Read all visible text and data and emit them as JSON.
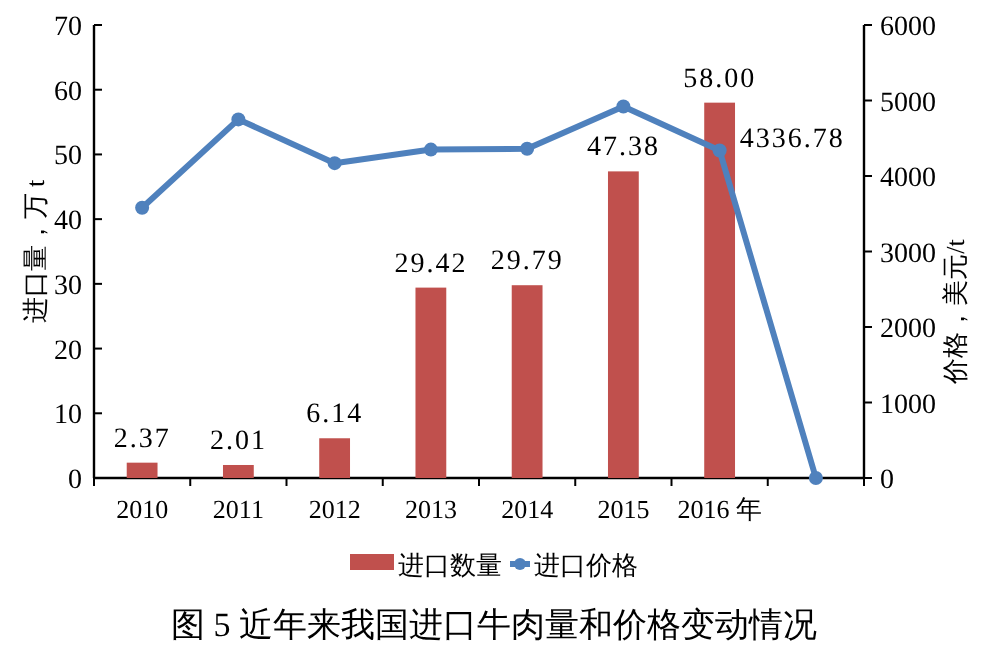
{
  "chart_data": {
    "type": "bar",
    "title": "图 5 近年来我国进口牛肉量和价格变动情况",
    "ylabel": "进口量，万 t",
    "y2label": "价格，美元/t",
    "categories": [
      "2010",
      "2011",
      "2012",
      "2013",
      "2014",
      "2015",
      "2016 年",
      null
    ],
    "series": [
      {
        "name": "进口数量",
        "color": "#c0504d",
        "values": [
          2.37,
          2.01,
          6.14,
          29.42,
          29.79,
          47.38,
          58.0,
          null
        ],
        "value_labels": [
          "2.37",
          "2.01",
          "6.14",
          "29.42",
          "29.79",
          "47.38",
          "58.00",
          null
        ]
      },
      {
        "name": "进口价格",
        "type": "line",
        "axis": "y2",
        "color": "#4f81bd",
        "marker": "circle",
        "values": [
          3580,
          4750,
          4170,
          4350,
          4360,
          4920,
          4336.78,
          0
        ],
        "value_labels": [
          null,
          null,
          null,
          null,
          null,
          null,
          "4336.78",
          null
        ]
      }
    ],
    "ylim": [
      0,
      70
    ],
    "yticks": [
      0,
      10,
      20,
      30,
      40,
      50,
      60,
      70
    ],
    "y2lim": [
      0,
      6000
    ],
    "y2ticks": [
      0,
      1000,
      2000,
      3000,
      4000,
      5000,
      6000
    ],
    "legend": "bottom"
  }
}
